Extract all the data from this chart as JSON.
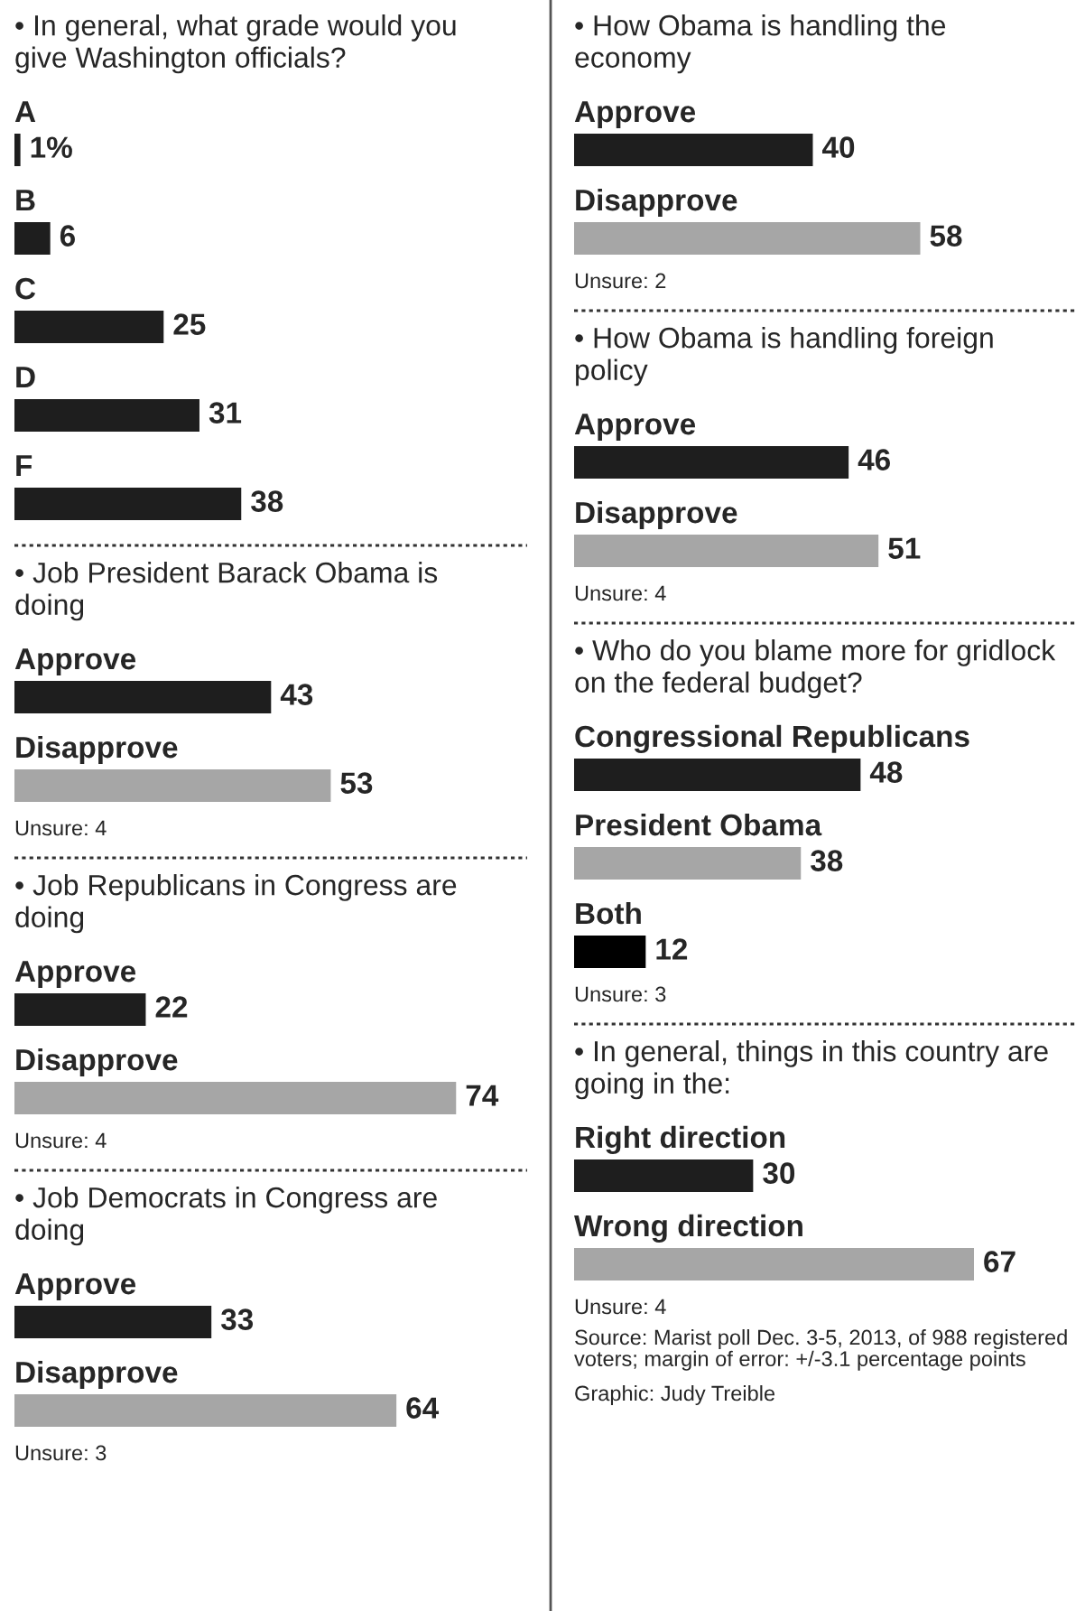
{
  "chart_data": [
    {
      "type": "bar",
      "orientation": "horizontal",
      "title": "• In general, what grade would you give Washington officials?",
      "categories": [
        "A",
        "B",
        "C",
        "D",
        "F"
      ],
      "values": [
        1,
        6,
        25,
        31,
        38
      ],
      "colors": [
        "#1e1e1e",
        "#1e1e1e",
        "#1e1e1e",
        "#1e1e1e",
        "#1e1e1e"
      ],
      "value_labels": [
        "1%",
        "6",
        "25",
        "31",
        "38"
      ]
    },
    {
      "type": "bar",
      "orientation": "horizontal",
      "title": "• Job President Barack Obama is doing",
      "categories": [
        "Approve",
        "Disapprove"
      ],
      "values": [
        43,
        53
      ],
      "colors": [
        "#1e1e1e",
        "#a6a6a6"
      ],
      "data_labels": true,
      "annotations": [
        "Unsure: 4"
      ]
    },
    {
      "type": "bar",
      "orientation": "horizontal",
      "title": "• Job Republicans in Congress are doing",
      "categories": [
        "Approve",
        "Disapprove"
      ],
      "values": [
        22,
        74
      ],
      "colors": [
        "#1e1e1e",
        "#a6a6a6"
      ],
      "data_labels": true,
      "annotations": [
        "Unsure: 4"
      ]
    },
    {
      "type": "bar",
      "orientation": "horizontal",
      "title": "• Job Democrats in Congress are doing",
      "categories": [
        "Approve",
        "Disapprove"
      ],
      "values": [
        33,
        64
      ],
      "colors": [
        "#1e1e1e",
        "#a6a6a6"
      ],
      "data_labels": true,
      "annotations": [
        "Unsure: 3"
      ]
    },
    {
      "type": "bar",
      "orientation": "horizontal",
      "title": "• How Obama is handling the economy",
      "categories": [
        "Approve",
        "Disapprove"
      ],
      "values": [
        40,
        58
      ],
      "colors": [
        "#1e1e1e",
        "#a6a6a6"
      ],
      "data_labels": true,
      "annotations": [
        "Unsure: 2"
      ]
    },
    {
      "type": "bar",
      "orientation": "horizontal",
      "title": "• How Obama is handling foreign policy",
      "categories": [
        "Approve",
        "Disapprove"
      ],
      "values": [
        46,
        51
      ],
      "colors": [
        "#1e1e1e",
        "#a6a6a6"
      ],
      "data_labels": true,
      "annotations": [
        "Unsure: 4"
      ]
    },
    {
      "type": "bar",
      "orientation": "horizontal",
      "title": "• Who do you blame more for gridlock on the federal budget?",
      "categories": [
        "Congressional Republicans",
        "President Obama",
        "Both"
      ],
      "values": [
        48,
        38,
        12
      ],
      "colors": [
        "#1e1e1e",
        "#a6a6a6",
        "#000000"
      ],
      "data_labels": true,
      "annotations": [
        "Unsure: 3"
      ]
    },
    {
      "type": "bar",
      "orientation": "horizontal",
      "title": "• In general, things in this country are going in the:",
      "categories": [
        "Right direction",
        "Wrong direction"
      ],
      "values": [
        30,
        67
      ],
      "colors": [
        "#1e1e1e",
        "#a6a6a6"
      ],
      "data_labels": true,
      "annotations": [
        "Unsure: 4",
        "Source: Marist poll Dec. 3-5, 2013, of 988 registered voters; margin of error: +/-3.1 percentage points",
        "Graphic: Judy Treible"
      ]
    }
  ]
}
